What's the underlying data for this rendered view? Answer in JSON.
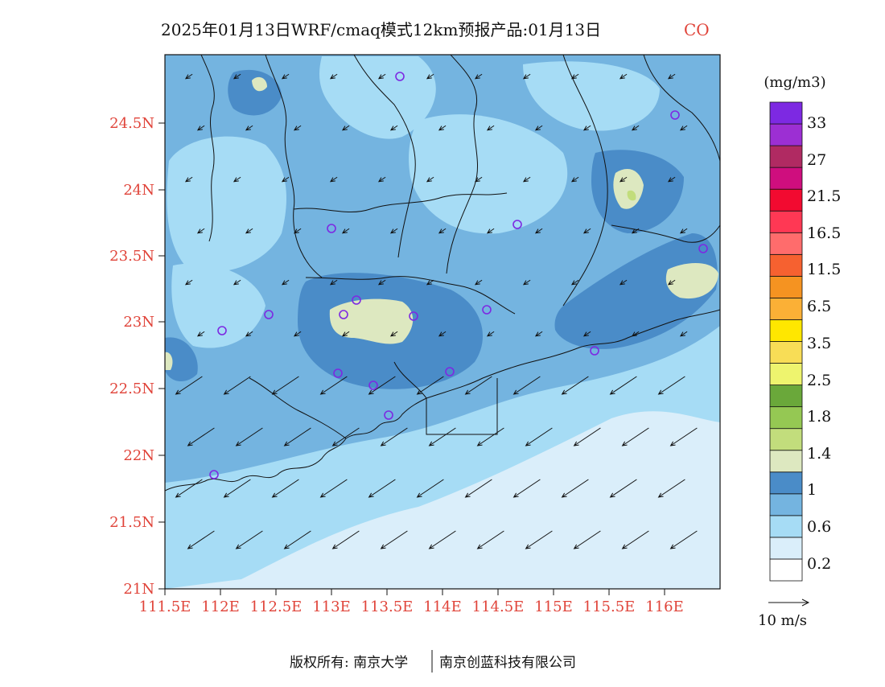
{
  "header": {
    "title": "2025年01月13日WRF/cmaq模式12km预报产品:01月13日",
    "pollutant": "CO"
  },
  "map": {
    "lon_ticks": [
      "111.5E",
      "112E",
      "112.5E",
      "113E",
      "113.5E",
      "114E",
      "114.5E",
      "115E",
      "115.5E",
      "116E"
    ],
    "lat_ticks": [
      "24.5N",
      "24N",
      "23.5N",
      "23N",
      "22.5N",
      "22N",
      "21.5N",
      "21N"
    ],
    "lon_range": [
      111.5,
      116.5
    ],
    "lat_range": [
      21.0,
      24.95
    ]
  },
  "colorbar": {
    "unit": "(mg/m3)",
    "labels": [
      "33",
      "27",
      "21.5",
      "16.5",
      "11.5",
      "6.5",
      "3.5",
      "2.5",
      "1.8",
      "1.4",
      "1",
      "0.6",
      "0.2"
    ],
    "colors": [
      "#ffffff",
      "#daeefa",
      "#a6dcf5",
      "#74b4e0",
      "#4a8cc8",
      "#dde8c0",
      "#c2dd7c",
      "#95c853",
      "#6aa83a",
      "#eef46e",
      "#f8dd56",
      "#ffe700",
      "#fbb036",
      "#f59321",
      "#f66130",
      "#ff6c6c",
      "#ff3854",
      "#f20a30",
      "#cf0e7e",
      "#b02a62",
      "#9c2fd3",
      "#7d29e2"
    ]
  },
  "wind": {
    "reference_label": "10 m/s"
  },
  "footer": {
    "left": "版权所有: 南京大学",
    "right": "南京创蓝科技有限公司"
  }
}
